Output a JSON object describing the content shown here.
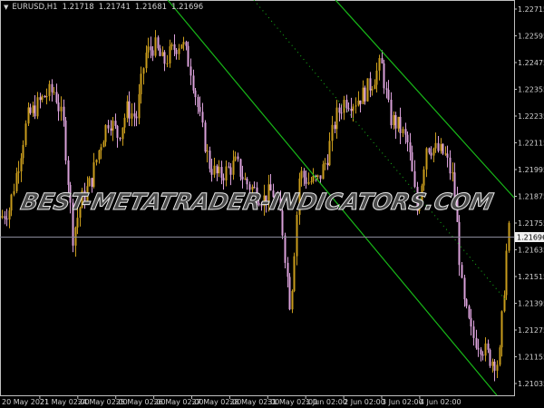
{
  "chart_data": {
    "type": "candlestick",
    "symbol_header": {
      "symbol": "EURUSD,H1",
      "open": "1.21718",
      "high": "1.21741",
      "low": "1.21681",
      "close": "1.21696"
    },
    "y_ticks": [
      "1.22715",
      "1.22595",
      "1.22475",
      "1.22355",
      "1.22235",
      "1.22115",
      "1.21995",
      "1.21875",
      "1.21755",
      "1.21635",
      "1.21515",
      "1.21395",
      "1.21275",
      "1.21155",
      "1.21035"
    ],
    "ylim": [
      1.2099,
      1.2279
    ],
    "x_ticks": [
      "20 May 2021",
      "21 May 02:00",
      "24 May 02:00",
      "25 May 02:00",
      "26 May 02:00",
      "27 May 02:00",
      "28 May 02:00",
      "31 May 02:00",
      "1 Jun 02:00",
      "2 Jun 02:00",
      "3 Jun 02:00",
      "4 Jun 02:00"
    ],
    "current_price": "1.21696",
    "close_path": [
      1.21779,
      1.2182,
      1.22023,
      1.22227,
      1.2228,
      1.2233,
      1.22349,
      1.22186,
      1.21698,
      1.21861,
      1.21942,
      1.22105,
      1.22227,
      1.22145,
      1.22267,
      1.22227,
      1.22512,
      1.22552,
      1.22471,
      1.22532,
      1.22573,
      1.2245,
      1.22227,
      1.22023,
      1.21962,
      1.2199,
      1.22023,
      1.21942,
      1.21901,
      1.21861,
      1.21901,
      1.21779,
      1.21372,
      1.21983,
      1.21942,
      1.21942,
      1.22043,
      1.22227,
      1.22308,
      1.223,
      1.2233,
      1.22389,
      1.22471,
      1.22227,
      1.22186,
      1.22105,
      1.218,
      1.22105,
      1.22084,
      1.22064,
      1.21942,
      1.21413,
      1.2125,
      1.21209,
      1.21148,
      1.21128,
      1.21718
    ],
    "colors": {
      "bull": "#c89b1c",
      "bear": "#d9a0d9",
      "channel": "#18b818",
      "price_line": "#8a8a9a",
      "background": "#000000",
      "axis": "#c0c0c0"
    },
    "grid": false
  },
  "watermark": "BEST-METATRADER-INDICATORS.COM"
}
